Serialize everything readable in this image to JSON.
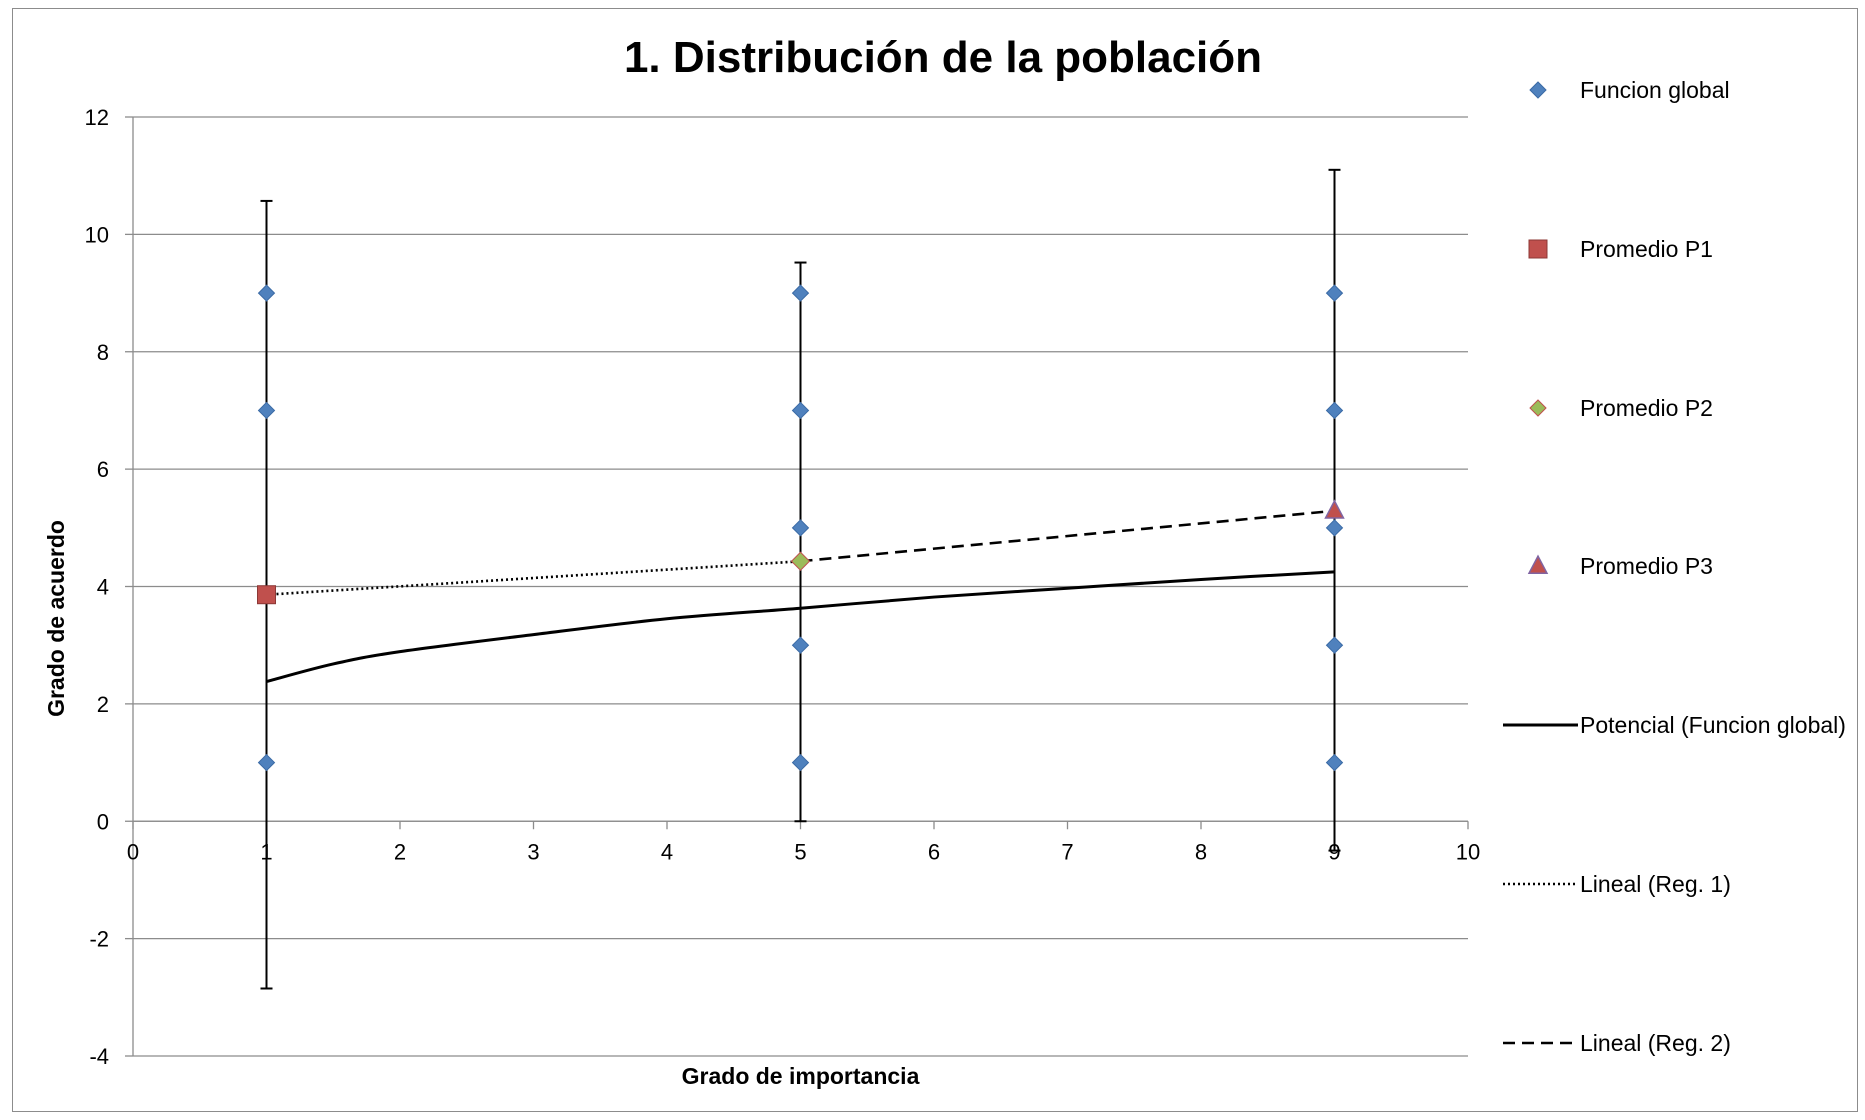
{
  "chart_data": {
    "type": "scatter",
    "title": "1. Distribución de la población",
    "xlabel": "Grado de importancia",
    "ylabel": "Grado de acuerdo",
    "xlim": [
      0,
      10
    ],
    "ylim": [
      -4,
      12
    ],
    "x_ticks": [
      "0",
      "1",
      "2",
      "3",
      "4",
      "5",
      "6",
      "7",
      "8",
      "9",
      "10"
    ],
    "y_ticks": [
      "-4",
      "-2",
      "0",
      "2",
      "4",
      "6",
      "8",
      "10",
      "12"
    ],
    "grid": "horizontal",
    "legend_position": "right",
    "series": [
      {
        "name": "Funcion global",
        "marker": "diamond",
        "color": "#4F81BD",
        "points": [
          {
            "x": 1,
            "y": 1
          },
          {
            "x": 1,
            "y": 7
          },
          {
            "x": 1,
            "y": 9
          },
          {
            "x": 5,
            "y": 1
          },
          {
            "x": 5,
            "y": 3
          },
          {
            "x": 5,
            "y": 5
          },
          {
            "x": 5,
            "y": 7
          },
          {
            "x": 5,
            "y": 9
          },
          {
            "x": 9,
            "y": 1
          },
          {
            "x": 9,
            "y": 3
          },
          {
            "x": 9,
            "y": 5
          },
          {
            "x": 9,
            "y": 7
          },
          {
            "x": 9,
            "y": 9
          }
        ]
      },
      {
        "name": "Promedio P1",
        "marker": "square",
        "color": "#C0504D",
        "points": [
          {
            "x": 1,
            "y": 3.86
          }
        ],
        "error_bar": [
          -2.85,
          10.57
        ]
      },
      {
        "name": "Promedio P2",
        "marker": "diamond",
        "color": "#9BBB59",
        "border": "#C0504D",
        "points": [
          {
            "x": 5,
            "y": 4.43
          }
        ],
        "error_bar": [
          0,
          9.52
        ]
      },
      {
        "name": "Promedio P3",
        "marker": "triangle",
        "color": "#C0504D",
        "border": "#8064A2",
        "points": [
          {
            "x": 9,
            "y": 5.29
          }
        ],
        "error_bar": [
          -0.5,
          11.1
        ]
      }
    ],
    "trendlines": [
      {
        "name": "Potencial (Funcion global)",
        "style": "solid",
        "points": [
          {
            "x": 1,
            "y": 2.38
          },
          {
            "x": 1.5,
            "y": 2.68
          },
          {
            "x": 2,
            "y": 2.89
          },
          {
            "x": 3,
            "y": 3.18
          },
          {
            "x": 4,
            "y": 3.45
          },
          {
            "x": 5,
            "y": 3.63
          },
          {
            "x": 6,
            "y": 3.82
          },
          {
            "x": 7,
            "y": 3.97
          },
          {
            "x": 8,
            "y": 4.12
          },
          {
            "x": 9,
            "y": 4.25
          }
        ]
      },
      {
        "name": "Lineal (Reg. 1)",
        "style": "dotted",
        "points": [
          {
            "x": 1,
            "y": 3.86
          },
          {
            "x": 5,
            "y": 4.43
          }
        ]
      },
      {
        "name": "Lineal (Reg. 2)",
        "style": "dashed",
        "points": [
          {
            "x": 5,
            "y": 4.43
          },
          {
            "x": 9,
            "y": 5.29
          }
        ]
      }
    ],
    "legend": [
      "Funcion global",
      "Promedio P1",
      "Promedio P2",
      "Promedio P3",
      "Potencial (Funcion global)",
      "Lineal (Reg. 1)",
      "Lineal (Reg. 2)"
    ]
  }
}
